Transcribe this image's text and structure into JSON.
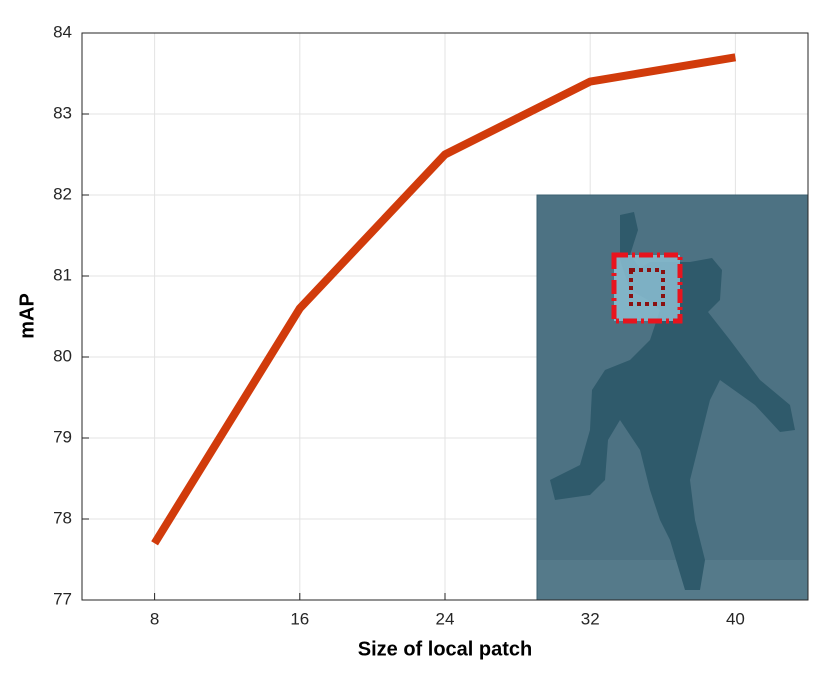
{
  "chart_data": {
    "type": "line",
    "x_label": "Size of local patch",
    "y_label": "mAP",
    "x": [
      8,
      16,
      24,
      32,
      40
    ],
    "values": [
      77.7,
      80.6,
      82.5,
      83.4,
      83.7
    ],
    "color": "#d13b0b",
    "xlim": [
      4,
      44
    ],
    "xticks": [
      8,
      16,
      24,
      32,
      40
    ],
    "ylim": [
      77,
      84
    ],
    "yticks": [
      77,
      78,
      79,
      80,
      81,
      82,
      83,
      84
    ],
    "grid": true
  }
}
